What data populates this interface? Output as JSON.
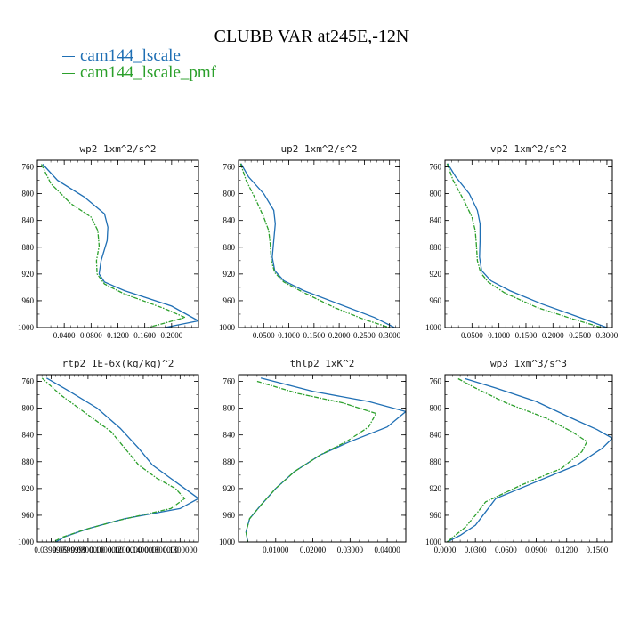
{
  "title": "CLUBB VAR at245E,-12N",
  "legend": [
    {
      "name": "cam144_lscale",
      "color": "#1f6fb4"
    },
    {
      "name": "cam144_lscale_pmf",
      "color": "#2ca02c"
    }
  ],
  "chart_data": [
    {
      "type": "line",
      "title": "wp2  1xm^2/s^2",
      "xlim": [
        0.0,
        0.24
      ],
      "ylim": [
        1000,
        750
      ],
      "y_reversed": true,
      "xticks": [
        0.04,
        0.08,
        0.12,
        0.16,
        0.2
      ],
      "xtick_labels": [
        "0.0400",
        "0.0800",
        "0.1200",
        "0.1600",
        "0.2000"
      ],
      "yticks": [
        760,
        800,
        840,
        880,
        920,
        960,
        1000
      ],
      "ytick_labels": [
        "760",
        "800",
        "840",
        "880",
        "920",
        "960",
        "1000"
      ],
      "series": [
        {
          "name": "cam144_lscale",
          "color": "#1f6fb4",
          "dash": false,
          "x": [
            0.008,
            0.03,
            0.07,
            0.1,
            0.105,
            0.104,
            0.095,
            0.092,
            0.1,
            0.13,
            0.2,
            0.24,
            0.19,
            0.17
          ],
          "y": [
            756,
            780,
            805,
            830,
            850,
            870,
            900,
            920,
            932,
            945,
            968,
            990,
            1000,
            1001
          ]
        },
        {
          "name": "cam144_lscale_pmf",
          "color": "#2ca02c",
          "dash": true,
          "x": [
            0.006,
            0.02,
            0.05,
            0.08,
            0.09,
            0.092,
            0.088,
            0.089,
            0.1,
            0.13,
            0.19,
            0.22,
            0.18,
            0.16
          ],
          "y": [
            756,
            785,
            815,
            835,
            855,
            878,
            900,
            920,
            935,
            950,
            972,
            985,
            996,
            1001
          ]
        }
      ]
    },
    {
      "type": "line",
      "title": "up2  1xm^2/s^2",
      "xlim": [
        0.0,
        0.32
      ],
      "ylim": [
        1000,
        750
      ],
      "y_reversed": true,
      "xticks": [
        0.05,
        0.1,
        0.15,
        0.2,
        0.25,
        0.3
      ],
      "xtick_labels": [
        "0.0500",
        "0.1000",
        "0.1500",
        "0.2000",
        "0.2500",
        "0.3000"
      ],
      "yticks": [
        760,
        800,
        840,
        880,
        920,
        960,
        1000
      ],
      "ytick_labels": [
        "760",
        "800",
        "840",
        "880",
        "920",
        "960",
        "1000"
      ],
      "series": [
        {
          "name": "cam144_lscale",
          "color": "#1f6fb4",
          "dash": false,
          "x": [
            0.005,
            0.02,
            0.05,
            0.07,
            0.073,
            0.07,
            0.067,
            0.072,
            0.09,
            0.13,
            0.2,
            0.27,
            0.31
          ],
          "y": [
            755,
            775,
            800,
            825,
            845,
            870,
            895,
            915,
            930,
            945,
            965,
            985,
            1000
          ]
        },
        {
          "name": "cam144_lscale_pmf",
          "color": "#2ca02c",
          "dash": true,
          "x": [
            0.004,
            0.015,
            0.035,
            0.05,
            0.06,
            0.063,
            0.065,
            0.072,
            0.09,
            0.13,
            0.19,
            0.25,
            0.3
          ],
          "y": [
            755,
            780,
            810,
            835,
            855,
            875,
            900,
            918,
            932,
            948,
            970,
            988,
            1000
          ]
        }
      ]
    },
    {
      "type": "line",
      "title": "vp2  1xm^2/s^2",
      "xlim": [
        0.0,
        0.31
      ],
      "ylim": [
        1000,
        750
      ],
      "y_reversed": true,
      "xticks": [
        0.05,
        0.1,
        0.15,
        0.2,
        0.25,
        0.3
      ],
      "xtick_labels": [
        "0.0500",
        "0.1000",
        "0.1500",
        "0.2000",
        "0.2500",
        "0.3000"
      ],
      "yticks": [
        760,
        800,
        840,
        880,
        920,
        960,
        1000
      ],
      "ytick_labels": [
        "760",
        "800",
        "840",
        "880",
        "920",
        "960",
        "1000"
      ],
      "series": [
        {
          "name": "cam144_lscale",
          "color": "#1f6fb4",
          "dash": false,
          "x": [
            0.005,
            0.02,
            0.045,
            0.06,
            0.065,
            0.065,
            0.064,
            0.068,
            0.085,
            0.12,
            0.18,
            0.25,
            0.3
          ],
          "y": [
            755,
            775,
            800,
            825,
            845,
            870,
            895,
            915,
            930,
            945,
            965,
            985,
            1000
          ]
        },
        {
          "name": "cam144_lscale_pmf",
          "color": "#2ca02c",
          "dash": true,
          "x": [
            0.004,
            0.015,
            0.035,
            0.05,
            0.056,
            0.058,
            0.06,
            0.066,
            0.08,
            0.11,
            0.17,
            0.24,
            0.29
          ],
          "y": [
            755,
            780,
            810,
            835,
            855,
            875,
            900,
            918,
            932,
            948,
            970,
            988,
            1000
          ]
        }
      ]
    },
    {
      "type": "line",
      "title": "rtp2  1E-6x(kg/kg)^2",
      "xlim": [
        0.025,
        0.2
      ],
      "ylim": [
        1000,
        750
      ],
      "y_reversed": true,
      "xticks": [
        0.04,
        0.06,
        0.08,
        0.1,
        0.12,
        0.14,
        0.16,
        0.18
      ],
      "xtick_labels": [
        "0.0399999",
        "0.0599999",
        "0.0800000",
        "0.1000000",
        "0.1200000",
        "0.1400000",
        "0.1600000",
        "0.1800000"
      ],
      "yticks": [
        760,
        800,
        840,
        880,
        920,
        960,
        1000
      ],
      "ytick_labels": [
        "760",
        "800",
        "840",
        "880",
        "920",
        "960",
        "1000"
      ],
      "series": [
        {
          "name": "cam144_lscale",
          "color": "#1f6fb4",
          "dash": false,
          "x": [
            0.035,
            0.06,
            0.09,
            0.115,
            0.135,
            0.15,
            0.17,
            0.185,
            0.2,
            0.18,
            0.12,
            0.08,
            0.055,
            0.045
          ],
          "y": [
            755,
            775,
            800,
            830,
            860,
            885,
            905,
            920,
            935,
            950,
            965,
            980,
            992,
            1000
          ]
        },
        {
          "name": "cam144_lscale_pmf",
          "color": "#2ca02c",
          "dash": true,
          "x": [
            0.03,
            0.05,
            0.08,
            0.105,
            0.12,
            0.135,
            0.155,
            0.175,
            0.185,
            0.17,
            0.115,
            0.075,
            0.052,
            0.042
          ],
          "y": [
            755,
            780,
            810,
            835,
            860,
            885,
            905,
            920,
            935,
            950,
            967,
            982,
            993,
            1000
          ]
        }
      ]
    },
    {
      "type": "line",
      "title": "thlp2  1xK^2",
      "xlim": [
        0.0,
        0.045
      ],
      "ylim": [
        1000,
        750
      ],
      "y_reversed": true,
      "xticks": [
        0.01,
        0.02,
        0.03,
        0.04
      ],
      "xtick_labels": [
        "0.01000",
        "0.02000",
        "0.03000",
        "0.04000"
      ],
      "yticks": [
        760,
        800,
        840,
        880,
        920,
        960,
        1000
      ],
      "ytick_labels": [
        "760",
        "800",
        "840",
        "880",
        "920",
        "960",
        "1000"
      ],
      "series": [
        {
          "name": "cam144_lscale",
          "color": "#1f6fb4",
          "dash": false,
          "x": [
            0.006,
            0.02,
            0.035,
            0.045,
            0.04,
            0.03,
            0.022,
            0.015,
            0.01,
            0.006,
            0.003,
            0.002,
            0.0025
          ],
          "y": [
            755,
            775,
            790,
            805,
            828,
            850,
            870,
            895,
            920,
            945,
            965,
            985,
            1000
          ]
        },
        {
          "name": "cam144_lscale_pmf",
          "color": "#2ca02c",
          "dash": true,
          "x": [
            0.005,
            0.016,
            0.028,
            0.037,
            0.035,
            0.029,
            0.022,
            0.015,
            0.01,
            0.006,
            0.003,
            0.002,
            0.0025
          ],
          "y": [
            760,
            778,
            792,
            808,
            828,
            850,
            870,
            895,
            920,
            945,
            965,
            985,
            1000
          ]
        }
      ]
    },
    {
      "type": "line",
      "title": "wp3  1xm^3/s^3",
      "xlim": [
        0.0,
        0.165
      ],
      "ylim": [
        1000,
        750
      ],
      "y_reversed": true,
      "xticks": [
        0.0,
        0.03,
        0.06,
        0.09,
        0.12,
        0.15
      ],
      "xtick_labels": [
        "0.0000",
        "0.0300",
        "0.0600",
        "0.0900",
        "0.1200",
        "0.1500"
      ],
      "yticks": [
        760,
        800,
        840,
        880,
        920,
        960,
        1000
      ],
      "ytick_labels": [
        "760",
        "800",
        "840",
        "880",
        "920",
        "960",
        "1000"
      ],
      "series": [
        {
          "name": "cam144_lscale",
          "color": "#1f6fb4",
          "dash": false,
          "x": [
            0.02,
            0.05,
            0.09,
            0.125,
            0.15,
            0.165,
            0.155,
            0.13,
            0.09,
            0.05,
            0.04,
            0.03,
            0.015,
            0.002
          ],
          "y": [
            756,
            770,
            790,
            815,
            832,
            845,
            860,
            885,
            910,
            935,
            955,
            975,
            990,
            1000
          ]
        },
        {
          "name": "cam144_lscale_pmf",
          "color": "#2ca02c",
          "dash": true,
          "x": [
            0.013,
            0.03,
            0.06,
            0.1,
            0.125,
            0.14,
            0.135,
            0.115,
            0.075,
            0.04,
            0.03,
            0.02,
            0.01,
            0.002
          ],
          "y": [
            756,
            770,
            792,
            815,
            835,
            850,
            865,
            890,
            915,
            940,
            960,
            978,
            990,
            1000
          ]
        }
      ]
    }
  ]
}
